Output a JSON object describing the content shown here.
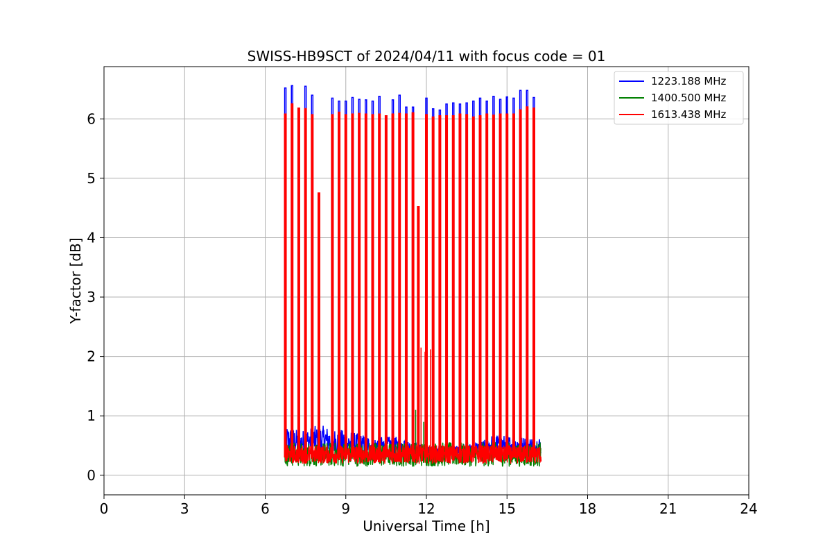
{
  "chart_data": {
    "type": "line",
    "title": "SWISS-HB9SCT of 2024/04/11 with focus code = 01",
    "xlabel": "Universal Time [h]",
    "ylabel": "Y-factor [dB]",
    "xlim": [
      0,
      24
    ],
    "ylim": [
      -0.33,
      6.88
    ],
    "xticks": [
      0,
      3,
      6,
      9,
      12,
      15,
      18,
      21,
      24
    ],
    "yticks": [
      0,
      1,
      2,
      3,
      4,
      5,
      6
    ],
    "grid": true,
    "legend_position": "top-right",
    "data_range_x": [
      6.73,
      16.27
    ],
    "series": [
      {
        "name": "1223.188 MHz",
        "color": "#0000ff",
        "baseline": [
          0.45,
          0.8
        ],
        "baseline_lines": [
          [
            6.73,
            0.8
          ],
          [
            7.3,
            0.7
          ],
          [
            8.0,
            0.8
          ],
          [
            9.0,
            0.7
          ],
          [
            10.0,
            0.6
          ],
          [
            11.0,
            0.6
          ],
          [
            12.0,
            0.45
          ],
          [
            13.0,
            0.45
          ],
          [
            14.0,
            0.5
          ],
          [
            14.5,
            0.65
          ],
          [
            15.5,
            0.6
          ],
          [
            16.27,
            0.6
          ]
        ],
        "peaks": [
          [
            6.75,
            6.52
          ],
          [
            7.0,
            6.56
          ],
          [
            7.5,
            6.55
          ],
          [
            7.75,
            6.4
          ],
          [
            8.5,
            6.35
          ],
          [
            8.75,
            6.3
          ],
          [
            9.0,
            6.3
          ],
          [
            9.25,
            6.36
          ],
          [
            9.5,
            6.33
          ],
          [
            9.75,
            6.32
          ],
          [
            10.0,
            6.3
          ],
          [
            10.25,
            6.38
          ],
          [
            10.75,
            6.32
          ],
          [
            11.0,
            6.4
          ],
          [
            11.25,
            6.2
          ],
          [
            11.5,
            6.2
          ],
          [
            12.0,
            6.35
          ],
          [
            12.25,
            6.17
          ],
          [
            12.5,
            6.15
          ],
          [
            12.75,
            6.25
          ],
          [
            13.0,
            6.27
          ],
          [
            13.25,
            6.25
          ],
          [
            13.5,
            6.27
          ],
          [
            13.75,
            6.3
          ],
          [
            14.0,
            6.35
          ],
          [
            14.25,
            6.3
          ],
          [
            14.5,
            6.38
          ],
          [
            14.75,
            6.33
          ],
          [
            15.0,
            6.37
          ],
          [
            15.25,
            6.35
          ],
          [
            15.5,
            6.48
          ],
          [
            15.75,
            6.48
          ],
          [
            16.0,
            6.36
          ]
        ]
      },
      {
        "name": "1400.500 MHz",
        "color": "#008000",
        "baseline": [
          0.15,
          0.55
        ],
        "spikes": [
          [
            11.6,
            1.1
          ],
          [
            11.9,
            0.9
          ]
        ]
      },
      {
        "name": "1613.438 MHz",
        "color": "#ff0000",
        "baseline": [
          0.2,
          0.5
        ],
        "peaks": [
          [
            6.75,
            6.08
          ],
          [
            7.0,
            6.25
          ],
          [
            7.25,
            6.18
          ],
          [
            7.5,
            6.17
          ],
          [
            7.75,
            6.07
          ],
          [
            8.0,
            4.75
          ],
          [
            8.5,
            6.07
          ],
          [
            8.75,
            6.11
          ],
          [
            9.0,
            6.07
          ],
          [
            9.25,
            6.08
          ],
          [
            9.5,
            6.09
          ],
          [
            9.75,
            6.08
          ],
          [
            10.0,
            6.07
          ],
          [
            10.25,
            6.08
          ],
          [
            10.5,
            6.05
          ],
          [
            10.75,
            6.08
          ],
          [
            11.0,
            6.09
          ],
          [
            11.25,
            6.08
          ],
          [
            11.5,
            6.1
          ],
          [
            11.7,
            4.52
          ],
          [
            12.0,
            6.07
          ],
          [
            12.25,
            6.03
          ],
          [
            12.5,
            6.05
          ],
          [
            12.75,
            6.05
          ],
          [
            13.0,
            6.05
          ],
          [
            13.25,
            6.08
          ],
          [
            13.5,
            6.07
          ],
          [
            13.75,
            6.03
          ],
          [
            14.0,
            6.05
          ],
          [
            14.25,
            6.08
          ],
          [
            14.5,
            6.06
          ],
          [
            14.75,
            6.08
          ],
          [
            15.0,
            6.08
          ],
          [
            15.25,
            6.08
          ],
          [
            15.5,
            6.15
          ],
          [
            15.75,
            6.2
          ],
          [
            16.0,
            6.18
          ]
        ],
        "spikes": [
          [
            6.72,
            1.75
          ],
          [
            10.5,
            2.05
          ],
          [
            11.8,
            2.15
          ],
          [
            11.95,
            2.08
          ],
          [
            12.15,
            2.12
          ]
        ]
      }
    ]
  }
}
